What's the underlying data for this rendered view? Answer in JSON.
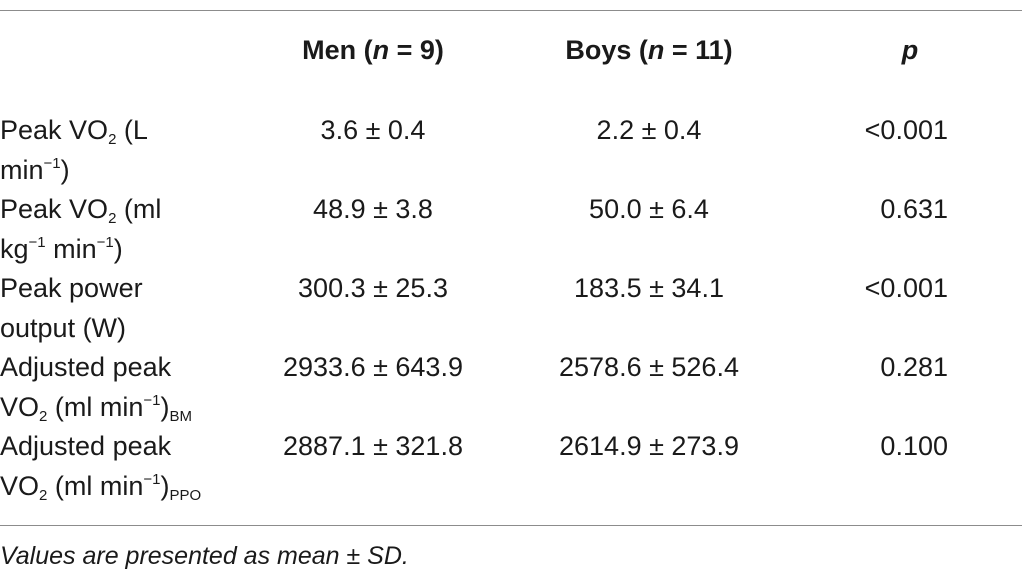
{
  "header": {
    "men_label": "Men (",
    "men_n": "n",
    "men_count": " = 9)",
    "boys_label": "Boys (",
    "boys_n": "n",
    "boys_count": " = 11)",
    "p_label": "p"
  },
  "rows": [
    {
      "label_line1_a": "Peak VO",
      "label_line1_sub": "2",
      "label_line1_b": " (L",
      "label_line2_a": "min",
      "label_line2_sup": "−1",
      "label_line2_b": ")",
      "men": "3.6 ± 0.4",
      "boys": "2.2 ± 0.4",
      "p": "<0.001"
    },
    {
      "label_line1_a": "Peak VO",
      "label_line1_sub": "2",
      "label_line1_b": " (ml",
      "label_line2_a": "kg",
      "label_line2_sup": "−1",
      "label_line2_b": " min",
      "label_line2_sup2": "−1",
      "label_line2_c": ")",
      "men": "48.9 ± 3.8",
      "boys": "50.0 ± 6.4",
      "p": "0.631"
    },
    {
      "label_line1": "Peak power",
      "label_line2": "output (W)",
      "men": "300.3 ± 25.3",
      "boys": "183.5 ± 34.1",
      "p": "<0.001"
    },
    {
      "label_line1": "Adjusted peak",
      "label_line2_a": "VO",
      "label_line2_sub": "2",
      "label_line2_b": " (ml min",
      "label_line2_sup": "−1",
      "label_line2_c": ")",
      "label_line2_sub2": "BM",
      "men": "2933.6 ± 643.9",
      "boys": "2578.6 ± 526.4",
      "p": "0.281"
    },
    {
      "label_line1": "Adjusted peak",
      "label_line2_a": "VO",
      "label_line2_sub": "2",
      "label_line2_b": " (ml min",
      "label_line2_sup": "−1",
      "label_line2_c": ")",
      "label_line2_sub2": "PPO",
      "men": "2887.1 ± 321.8",
      "boys": "2614.9 ± 273.9",
      "p": "0.100"
    }
  ],
  "footnote": "Values are presented as mean ± SD."
}
